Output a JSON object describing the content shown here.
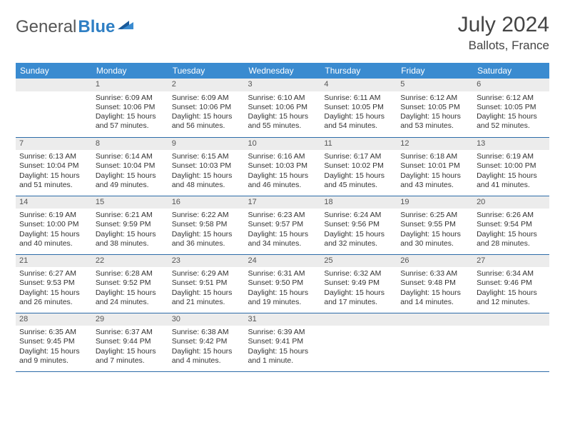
{
  "brand": {
    "part1": "General",
    "part2": "Blue"
  },
  "title": {
    "month": "July 2024",
    "location": "Ballots, France"
  },
  "colors": {
    "header_bg": "#3a8bd0",
    "header_text": "#ffffff",
    "daynum_bg": "#ececec",
    "border": "#2d6ca8",
    "brand_blue": "#2f7fc4",
    "text": "#333333"
  },
  "weekdays": [
    "Sunday",
    "Monday",
    "Tuesday",
    "Wednesday",
    "Thursday",
    "Friday",
    "Saturday"
  ],
  "weeks": [
    [
      null,
      {
        "n": "1",
        "sr": "Sunrise: 6:09 AM",
        "ss": "Sunset: 10:06 PM",
        "d1": "Daylight: 15 hours",
        "d2": "and 57 minutes."
      },
      {
        "n": "2",
        "sr": "Sunrise: 6:09 AM",
        "ss": "Sunset: 10:06 PM",
        "d1": "Daylight: 15 hours",
        "d2": "and 56 minutes."
      },
      {
        "n": "3",
        "sr": "Sunrise: 6:10 AM",
        "ss": "Sunset: 10:06 PM",
        "d1": "Daylight: 15 hours",
        "d2": "and 55 minutes."
      },
      {
        "n": "4",
        "sr": "Sunrise: 6:11 AM",
        "ss": "Sunset: 10:05 PM",
        "d1": "Daylight: 15 hours",
        "d2": "and 54 minutes."
      },
      {
        "n": "5",
        "sr": "Sunrise: 6:12 AM",
        "ss": "Sunset: 10:05 PM",
        "d1": "Daylight: 15 hours",
        "d2": "and 53 minutes."
      },
      {
        "n": "6",
        "sr": "Sunrise: 6:12 AM",
        "ss": "Sunset: 10:05 PM",
        "d1": "Daylight: 15 hours",
        "d2": "and 52 minutes."
      }
    ],
    [
      {
        "n": "7",
        "sr": "Sunrise: 6:13 AM",
        "ss": "Sunset: 10:04 PM",
        "d1": "Daylight: 15 hours",
        "d2": "and 51 minutes."
      },
      {
        "n": "8",
        "sr": "Sunrise: 6:14 AM",
        "ss": "Sunset: 10:04 PM",
        "d1": "Daylight: 15 hours",
        "d2": "and 49 minutes."
      },
      {
        "n": "9",
        "sr": "Sunrise: 6:15 AM",
        "ss": "Sunset: 10:03 PM",
        "d1": "Daylight: 15 hours",
        "d2": "and 48 minutes."
      },
      {
        "n": "10",
        "sr": "Sunrise: 6:16 AM",
        "ss": "Sunset: 10:03 PM",
        "d1": "Daylight: 15 hours",
        "d2": "and 46 minutes."
      },
      {
        "n": "11",
        "sr": "Sunrise: 6:17 AM",
        "ss": "Sunset: 10:02 PM",
        "d1": "Daylight: 15 hours",
        "d2": "and 45 minutes."
      },
      {
        "n": "12",
        "sr": "Sunrise: 6:18 AM",
        "ss": "Sunset: 10:01 PM",
        "d1": "Daylight: 15 hours",
        "d2": "and 43 minutes."
      },
      {
        "n": "13",
        "sr": "Sunrise: 6:19 AM",
        "ss": "Sunset: 10:00 PM",
        "d1": "Daylight: 15 hours",
        "d2": "and 41 minutes."
      }
    ],
    [
      {
        "n": "14",
        "sr": "Sunrise: 6:19 AM",
        "ss": "Sunset: 10:00 PM",
        "d1": "Daylight: 15 hours",
        "d2": "and 40 minutes."
      },
      {
        "n": "15",
        "sr": "Sunrise: 6:21 AM",
        "ss": "Sunset: 9:59 PM",
        "d1": "Daylight: 15 hours",
        "d2": "and 38 minutes."
      },
      {
        "n": "16",
        "sr": "Sunrise: 6:22 AM",
        "ss": "Sunset: 9:58 PM",
        "d1": "Daylight: 15 hours",
        "d2": "and 36 minutes."
      },
      {
        "n": "17",
        "sr": "Sunrise: 6:23 AM",
        "ss": "Sunset: 9:57 PM",
        "d1": "Daylight: 15 hours",
        "d2": "and 34 minutes."
      },
      {
        "n": "18",
        "sr": "Sunrise: 6:24 AM",
        "ss": "Sunset: 9:56 PM",
        "d1": "Daylight: 15 hours",
        "d2": "and 32 minutes."
      },
      {
        "n": "19",
        "sr": "Sunrise: 6:25 AM",
        "ss": "Sunset: 9:55 PM",
        "d1": "Daylight: 15 hours",
        "d2": "and 30 minutes."
      },
      {
        "n": "20",
        "sr": "Sunrise: 6:26 AM",
        "ss": "Sunset: 9:54 PM",
        "d1": "Daylight: 15 hours",
        "d2": "and 28 minutes."
      }
    ],
    [
      {
        "n": "21",
        "sr": "Sunrise: 6:27 AM",
        "ss": "Sunset: 9:53 PM",
        "d1": "Daylight: 15 hours",
        "d2": "and 26 minutes."
      },
      {
        "n": "22",
        "sr": "Sunrise: 6:28 AM",
        "ss": "Sunset: 9:52 PM",
        "d1": "Daylight: 15 hours",
        "d2": "and 24 minutes."
      },
      {
        "n": "23",
        "sr": "Sunrise: 6:29 AM",
        "ss": "Sunset: 9:51 PM",
        "d1": "Daylight: 15 hours",
        "d2": "and 21 minutes."
      },
      {
        "n": "24",
        "sr": "Sunrise: 6:31 AM",
        "ss": "Sunset: 9:50 PM",
        "d1": "Daylight: 15 hours",
        "d2": "and 19 minutes."
      },
      {
        "n": "25",
        "sr": "Sunrise: 6:32 AM",
        "ss": "Sunset: 9:49 PM",
        "d1": "Daylight: 15 hours",
        "d2": "and 17 minutes."
      },
      {
        "n": "26",
        "sr": "Sunrise: 6:33 AM",
        "ss": "Sunset: 9:48 PM",
        "d1": "Daylight: 15 hours",
        "d2": "and 14 minutes."
      },
      {
        "n": "27",
        "sr": "Sunrise: 6:34 AM",
        "ss": "Sunset: 9:46 PM",
        "d1": "Daylight: 15 hours",
        "d2": "and 12 minutes."
      }
    ],
    [
      {
        "n": "28",
        "sr": "Sunrise: 6:35 AM",
        "ss": "Sunset: 9:45 PM",
        "d1": "Daylight: 15 hours",
        "d2": "and 9 minutes."
      },
      {
        "n": "29",
        "sr": "Sunrise: 6:37 AM",
        "ss": "Sunset: 9:44 PM",
        "d1": "Daylight: 15 hours",
        "d2": "and 7 minutes."
      },
      {
        "n": "30",
        "sr": "Sunrise: 6:38 AM",
        "ss": "Sunset: 9:42 PM",
        "d1": "Daylight: 15 hours",
        "d2": "and 4 minutes."
      },
      {
        "n": "31",
        "sr": "Sunrise: 6:39 AM",
        "ss": "Sunset: 9:41 PM",
        "d1": "Daylight: 15 hours",
        "d2": "and 1 minute."
      },
      null,
      null,
      null
    ]
  ]
}
